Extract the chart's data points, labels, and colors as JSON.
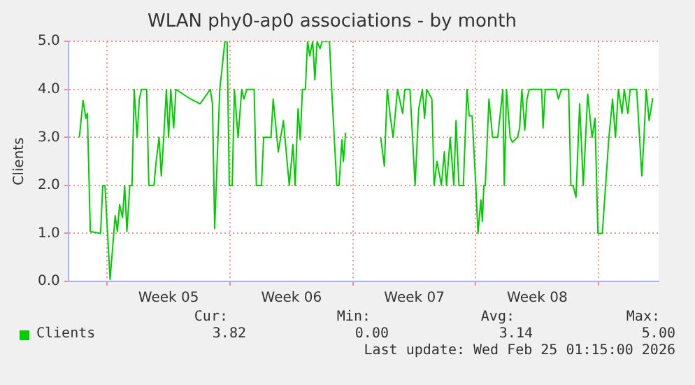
{
  "chart_data": {
    "type": "line",
    "title": "WLAN phy0-ap0 associations - by month",
    "ylabel": "Clients",
    "x": [
      "2026-01-23T10:00",
      "2026-01-23T15:00",
      "2026-01-23T19:00",
      "2026-01-23T21:00",
      "2026-01-24T01:00",
      "2026-01-24T15:00",
      "2026-01-24T18:00",
      "2026-01-24T21:00",
      "2026-01-25T04:00",
      "2026-01-25T11:00",
      "2026-01-25T14:00",
      "2026-01-25T17:00",
      "2026-01-25T21:00",
      "2026-01-26T00:00",
      "2026-01-26T03:00",
      "2026-01-26T07:00",
      "2026-01-26T10:00",
      "2026-01-26T13:00",
      "2026-01-26T17:00",
      "2026-01-26T20:00",
      "2026-01-26T23:00",
      "2026-01-27T06:00",
      "2026-01-27T09:00",
      "2026-01-27T16:00",
      "2026-01-27T19:00",
      "2026-01-27T23:00",
      "2026-01-28T02:00",
      "2026-01-28T05:00",
      "2026-01-28T09:00",
      "2026-01-28T12:00",
      "2026-01-28T15:00",
      "2026-01-28T19:00",
      "2026-01-28T22:00",
      "2026-01-29T18:00",
      "2026-01-30T07:00",
      "2026-01-30T21:00",
      "2026-01-31T00:00",
      "2026-01-31T03:00",
      "2026-01-31T10:00",
      "2026-01-31T17:00",
      "2026-01-31T20:00",
      "2026-01-31T23:00",
      "2026-02-01T03:00",
      "2026-02-01T06:00",
      "2026-02-01T11:00",
      "2026-02-01T16:00",
      "2026-02-01T19:00",
      "2026-02-01T23:00",
      "2026-02-02T09:00",
      "2026-02-02T12:00",
      "2026-02-02T19:00",
      "2026-02-02T22:00",
      "2026-02-03T08:00",
      "2026-02-03T11:00",
      "2026-02-03T18:00",
      "2026-02-04T01:00",
      "2026-02-04T09:00",
      "2026-02-04T14:00",
      "2026-02-04T17:00",
      "2026-02-04T21:00",
      "2026-02-05T00:00",
      "2026-02-05T03:00",
      "2026-02-05T07:00",
      "2026-02-05T10:00",
      "2026-02-05T13:00",
      "2026-02-05T17:00",
      "2026-02-05T20:00",
      "2026-02-05T23:00",
      "2026-02-06T03:00",
      "2026-02-06T06:00",
      "2026-02-06T16:00",
      "2026-02-06T19:00",
      "2026-02-07T02:00",
      "2026-02-07T05:00",
      "2026-02-07T09:00",
      "2026-02-07T11:00",
      "2026-02-07T14:00",
      "2026-02-08T12:00",
      "2026-02-09T14:00",
      "2026-02-09T19:00",
      "2026-02-09T23:00",
      "2026-02-10T03:00",
      "2026-02-10T07:00",
      "2026-02-10T13:00",
      "2026-02-10T20:00",
      "2026-02-10T23:00",
      "2026-02-11T06:00",
      "2026-02-11T09:00",
      "2026-02-11T13:00",
      "2026-02-11T18:00",
      "2026-02-11T23:00",
      "2026-02-12T02:00",
      "2026-02-12T05:00",
      "2026-02-12T12:00",
      "2026-02-12T15:00",
      "2026-02-12T19:00",
      "2026-02-13T01:00",
      "2026-02-13T05:00",
      "2026-02-13T08:00",
      "2026-02-13T13:00",
      "2026-02-13T18:00",
      "2026-02-13T21:00",
      "2026-02-14T01:00",
      "2026-02-14T07:00",
      "2026-02-14T12:00",
      "2026-02-14T15:00",
      "2026-02-14T19:00",
      "2026-02-15T00:00",
      "2026-02-15T03:00",
      "2026-02-15T07:00",
      "2026-02-15T09:00",
      "2026-02-15T11:00",
      "2026-02-15T13:00",
      "2026-02-15T18:00",
      "2026-02-15T23:00",
      "2026-02-16T06:00",
      "2026-02-16T13:00",
      "2026-02-16T15:00",
      "2026-02-16T18:00",
      "2026-02-16T23:00",
      "2026-02-17T02:00",
      "2026-02-17T09:00",
      "2026-02-17T12:00",
      "2026-02-17T15:00",
      "2026-02-17T19:00",
      "2026-02-17T22:00",
      "2026-02-18T01:00",
      "2026-02-18T18:00",
      "2026-02-18T20:00",
      "2026-02-18T23:00",
      "2026-02-19T14:00",
      "2026-02-19T17:00",
      "2026-02-19T21:00",
      "2026-02-20T07:00",
      "2026-02-20T10:00",
      "2026-02-20T13:00",
      "2026-02-20T17:00",
      "2026-02-20T22:00",
      "2026-02-21T03:00",
      "2026-02-21T09:00",
      "2026-02-21T15:00",
      "2026-02-21T19:00",
      "2026-02-21T23:00",
      "2026-02-22T05:00",
      "2026-02-22T14:00",
      "2026-02-22T19:00",
      "2026-02-22T23:00",
      "2026-02-23T03:00",
      "2026-02-23T08:00",
      "2026-02-23T11:00",
      "2026-02-23T16:00",
      "2026-02-23T19:00",
      "2026-02-24T04:00",
      "2026-02-24T11:00",
      "2026-02-24T14:00",
      "2026-02-24T17:00",
      "2026-02-24T21:00",
      "2026-02-25T02:00"
    ],
    "series": [
      {
        "name": "Clients",
        "color": "#00cc00",
        "values": [
          3.0,
          3.77,
          3.4,
          3.5,
          1.04,
          1.0,
          2.0,
          2.0,
          0.04,
          1.37,
          1.04,
          1.6,
          1.33,
          2.0,
          1.04,
          2.0,
          2.0,
          4.0,
          3.0,
          3.8,
          4.0,
          4.0,
          2.0,
          2.0,
          2.5,
          3.0,
          2.2,
          2.9,
          4.0,
          3.0,
          4.0,
          3.2,
          4.0,
          3.8,
          3.7,
          4.0,
          3.7,
          1.1,
          4.0,
          5.0,
          5.0,
          2.0,
          2.0,
          4.0,
          3.0,
          4.0,
          3.8,
          4.0,
          4.0,
          2.0,
          2.0,
          3.0,
          3.0,
          3.8,
          2.7,
          3.35,
          2.0,
          2.85,
          2.0,
          3.6,
          2.95,
          4.0,
          4.0,
          5.0,
          4.7,
          5.0,
          4.2,
          5.0,
          4.85,
          5.0,
          5.0,
          4.0,
          2.0,
          2.0,
          2.95,
          2.5,
          3.1,
          null,
          3.0,
          2.4,
          4.0,
          3.45,
          3.0,
          4.0,
          3.5,
          4.0,
          4.0,
          3.15,
          2.0,
          3.6,
          4.0,
          3.4,
          4.0,
          3.8,
          2.0,
          2.5,
          2.0,
          2.7,
          2.0,
          3.0,
          2.0,
          3.35,
          2.0,
          2.0,
          4.0,
          3.45,
          3.45,
          2.0,
          1.0,
          1.7,
          1.25,
          2.0,
          2.0,
          3.8,
          3.0,
          3.0,
          4.0,
          2.0,
          4.0,
          3.0,
          2.9,
          3.0,
          3.2,
          4.0,
          3.15,
          3.8,
          4.0,
          4.0,
          3.2,
          4.0,
          4.0,
          3.8,
          4.0,
          4.0,
          2.0,
          2.0,
          1.75,
          3.7,
          2.0,
          3.9,
          3.0,
          3.4,
          1.0,
          1.0,
          3.0,
          3.8,
          3.0,
          4.0,
          3.5,
          4.0,
          3.5,
          4.0,
          4.0,
          2.2,
          3.0,
          4.0,
          3.35,
          3.82
        ]
      }
    ],
    "xlim": [
      "2026-01-22T19:00",
      "2026-02-25T10:00"
    ],
    "xticks": [
      {
        "value": "2026-01-25T00:00",
        "label": null
      },
      {
        "value": "2026-01-28T12:00",
        "label": "Week 05"
      },
      {
        "value": "2026-02-01T00:00",
        "label": null
      },
      {
        "value": "2026-02-04T12:00",
        "label": "Week 06"
      },
      {
        "value": "2026-02-08T00:00",
        "label": null
      },
      {
        "value": "2026-02-11T12:00",
        "label": "Week 07"
      },
      {
        "value": "2026-02-15T00:00",
        "label": null
      },
      {
        "value": "2026-02-18T12:00",
        "label": "Week 08"
      },
      {
        "value": "2026-02-22T00:00",
        "label": null
      }
    ],
    "ylim": [
      0,
      5
    ],
    "yticks": [
      {
        "value": 0,
        "label": "0.0"
      },
      {
        "value": 1,
        "label": "1.0"
      },
      {
        "value": 2,
        "label": "2.0"
      },
      {
        "value": 3,
        "label": "3.0"
      },
      {
        "value": 4,
        "label": "4.0"
      },
      {
        "value": 5,
        "label": "5.0"
      }
    ],
    "grid": true,
    "legend": "bottom left",
    "marker": "none",
    "line_style": "solid",
    "annotations": [
      "Cur:",
      "Min:",
      "Avg:",
      "Max:",
      "3.82",
      "0.00",
      "3.14",
      "5.00",
      "Last update: Wed Feb 25 01:15:00 2026"
    ]
  }
}
